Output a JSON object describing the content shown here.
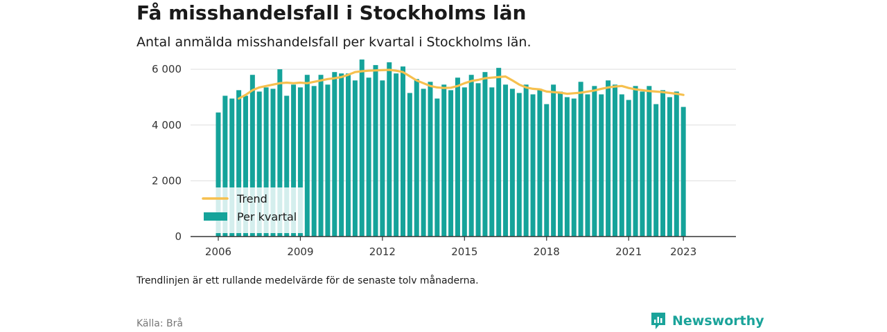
{
  "header": {
    "title": "Få misshandelsfall i Stockholms län",
    "subtitle": "Antal anmälda misshandelsfall per kvartal i Stockholms län."
  },
  "footer": {
    "note": "Trendlinjen är ett rullande medelvärde för de senaste tolv månaderna.",
    "source": "Källa: Brå",
    "brand": "Newsworthy"
  },
  "colors": {
    "bars": "#15a39a",
    "trend": "#f6c04e",
    "grid": "#dddddd",
    "brand": "#1aa39a"
  },
  "chart_data": {
    "type": "bar",
    "ylim": [
      0,
      6500
    ],
    "y_ticks": [
      0,
      2000,
      4000,
      6000
    ],
    "y_tick_labels": [
      "0",
      "2 000",
      "4 000",
      "6 000"
    ],
    "x_ticks": [
      2006,
      2009,
      2012,
      2015,
      2018,
      2021,
      2023
    ],
    "x_tick_labels": [
      "2006",
      "2009",
      "2012",
      "2015",
      "2018",
      "2021",
      "2023"
    ],
    "legend": {
      "position": "bottom-left",
      "entries": [
        "Trend",
        "Per kvartal"
      ]
    },
    "categories": [
      "2006 Q1",
      "2006 Q2",
      "2006 Q3",
      "2006 Q4",
      "2007 Q1",
      "2007 Q2",
      "2007 Q3",
      "2007 Q4",
      "2008 Q1",
      "2008 Q2",
      "2008 Q3",
      "2008 Q4",
      "2009 Q1",
      "2009 Q2",
      "2009 Q3",
      "2009 Q4",
      "2010 Q1",
      "2010 Q2",
      "2010 Q3",
      "2010 Q4",
      "2011 Q1",
      "2011 Q2",
      "2011 Q3",
      "2011 Q4",
      "2012 Q1",
      "2012 Q2",
      "2012 Q3",
      "2012 Q4",
      "2013 Q1",
      "2013 Q2",
      "2013 Q3",
      "2013 Q4",
      "2014 Q1",
      "2014 Q2",
      "2014 Q3",
      "2014 Q4",
      "2015 Q1",
      "2015 Q2",
      "2015 Q3",
      "2015 Q4",
      "2016 Q1",
      "2016 Q2",
      "2016 Q3",
      "2016 Q4",
      "2017 Q1",
      "2017 Q2",
      "2017 Q3",
      "2017 Q4",
      "2018 Q1",
      "2018 Q2",
      "2018 Q3",
      "2018 Q4",
      "2019 Q1",
      "2019 Q2",
      "2019 Q3",
      "2019 Q4",
      "2020 Q1",
      "2020 Q2",
      "2020 Q3",
      "2020 Q4",
      "2021 Q1",
      "2021 Q2",
      "2021 Q3",
      "2021 Q4",
      "2022 Q1",
      "2022 Q2",
      "2022 Q3",
      "2022 Q4",
      "2023 Q1"
    ],
    "series": [
      {
        "name": "Per kvartal",
        "type": "bar",
        "values": [
          4450,
          5050,
          4950,
          5250,
          5050,
          5800,
          5200,
          5350,
          5300,
          6000,
          5050,
          5450,
          5350,
          5800,
          5400,
          5800,
          5450,
          5900,
          5850,
          5850,
          5600,
          6350,
          5700,
          6150,
          5600,
          6250,
          5850,
          6100,
          5150,
          5650,
          5300,
          5550,
          4950,
          5450,
          5250,
          5700,
          5350,
          5800,
          5500,
          5900,
          5350,
          6050,
          5450,
          5300,
          5150,
          5450,
          5100,
          5300,
          4750,
          5450,
          5200,
          5000,
          4950,
          5550,
          5100,
          5400,
          5100,
          5600,
          5450,
          5100,
          4900,
          5400,
          5200,
          5400,
          4750,
          5250,
          5000,
          5200,
          4650
        ]
      },
      {
        "name": "Trend",
        "type": "line",
        "values": [
          null,
          null,
          null,
          4950,
          5080,
          5250,
          5350,
          5400,
          5450,
          5500,
          5520,
          5500,
          5520,
          5500,
          5550,
          5600,
          5650,
          5680,
          5720,
          5800,
          5900,
          5930,
          5950,
          5960,
          5970,
          5980,
          5950,
          5900,
          5750,
          5600,
          5500,
          5400,
          5350,
          5330,
          5340,
          5400,
          5500,
          5580,
          5620,
          5680,
          5700,
          5720,
          5740,
          5600,
          5450,
          5350,
          5300,
          5280,
          5200,
          5180,
          5160,
          5120,
          5140,
          5160,
          5200,
          5240,
          5300,
          5350,
          5380,
          5400,
          5330,
          5280,
          5250,
          5220,
          5200,
          5180,
          5150,
          5120,
          5080
        ]
      }
    ]
  }
}
